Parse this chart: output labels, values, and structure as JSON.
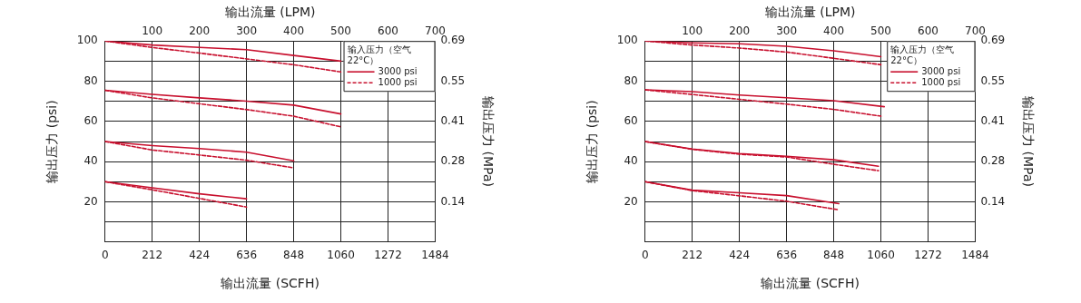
{
  "chart_data": [
    {
      "type": "line",
      "xlabel": "输出流量 (SCFH)",
      "x2label": "输出流量 (LPM)",
      "ylabel": "输出压力 (psi)",
      "y2label": "输出压力 (MPa)",
      "legend_title": "输入压力（空气 22°C）",
      "legend": "top right",
      "grid": true,
      "xlim": [
        0,
        1484
      ],
      "xticks": [
        0,
        212,
        424,
        636,
        848,
        1060,
        1272,
        1484
      ],
      "x2lim": [
        0,
        700
      ],
      "x2ticks": [
        100,
        200,
        300,
        400,
        500,
        600,
        700
      ],
      "ylim": [
        0,
        100
      ],
      "yticks": [
        {
          "value": 10,
          "label": null
        },
        20,
        {
          "value": 30,
          "label": null
        },
        40,
        {
          "value": 50,
          "label": null
        },
        60,
        {
          "value": 70,
          "label": null
        },
        80,
        {
          "value": 90,
          "label": null
        },
        100
      ],
      "y2lim": [
        0,
        0.6895
      ],
      "y2ticks": [
        {
          "value": 0.1379,
          "label": "0.14"
        },
        {
          "value": 0.2758,
          "label": "0.28"
        },
        {
          "value": 0.4137,
          "label": "0.41"
        },
        {
          "value": 0.5516,
          "label": "0.55"
        },
        {
          "value": 0.6895,
          "label": "0.69"
        }
      ],
      "series": [
        {
          "name": "3000 psi",
          "color": "#c8102e",
          "line_style": "solid",
          "x": [
            0,
            212,
            424,
            636,
            848,
            1060
          ],
          "values": [
            100,
            98,
            96.8,
            95.7,
            92.8,
            90
          ]
        },
        {
          "name": "1000 psi",
          "color": "#c8102e",
          "line_style": "dashed",
          "x": [
            0,
            212,
            424,
            636,
            848,
            1060
          ],
          "values": [
            100,
            96.8,
            94,
            91.1,
            88.2,
            84.6
          ]
        },
        {
          "color": "#c8102e",
          "line_style": "solid",
          "x": [
            0,
            212,
            424,
            636,
            848,
            1060
          ],
          "values": [
            75.5,
            73.5,
            71.7,
            70.1,
            68.1,
            63.7
          ]
        },
        {
          "color": "#c8102e",
          "line_style": "dashed",
          "x": [
            0,
            212,
            424,
            636,
            848,
            1060
          ],
          "values": [
            75.5,
            71.7,
            68.8,
            65.9,
            62.6,
            57.3
          ]
        },
        {
          "color": "#c8102e",
          "line_style": "solid",
          "x": [
            0,
            212,
            424,
            636,
            848
          ],
          "values": [
            50,
            48,
            46.5,
            44.7,
            40.4
          ]
        },
        {
          "color": "#c8102e",
          "line_style": "dashed",
          "x": [
            0,
            212,
            424,
            636,
            848
          ],
          "values": [
            50,
            45.8,
            43.3,
            40.7,
            36.9
          ]
        },
        {
          "color": "#c8102e",
          "line_style": "solid",
          "x": [
            0,
            212,
            424,
            636
          ],
          "values": [
            30,
            27,
            24,
            21.5
          ]
        },
        {
          "color": "#c8102e",
          "line_style": "dashed",
          "x": [
            0,
            212,
            424,
            636
          ],
          "values": [
            30,
            26,
            21.7,
            17.4
          ]
        }
      ]
    },
    {
      "type": "line",
      "xlabel": "输出流量 (SCFH)",
      "x2label": "输出流量 (LPM)",
      "ylabel": "输出压力 (psi)",
      "y2label": "输出压力 (MPa)",
      "legend_title": "输入压力（空气 22°C）",
      "legend": "top right",
      "grid": true,
      "xlim": [
        0,
        1484
      ],
      "xticks": [
        0,
        212,
        424,
        636,
        848,
        1060,
        1272,
        1484
      ],
      "x2lim": [
        0,
        700
      ],
      "x2ticks": [
        100,
        200,
        300,
        400,
        500,
        600,
        700
      ],
      "ylim": [
        0,
        100
      ],
      "yticks": [
        {
          "value": 10,
          "label": null
        },
        20,
        {
          "value": 30,
          "label": null
        },
        40,
        {
          "value": 50,
          "label": null
        },
        60,
        {
          "value": 70,
          "label": null
        },
        80,
        {
          "value": 90,
          "label": null
        },
        100
      ],
      "y2lim": [
        0,
        0.6895
      ],
      "y2ticks": [
        {
          "value": 0.1379,
          "label": "0.14"
        },
        {
          "value": 0.2758,
          "label": "0.28"
        },
        {
          "value": 0.4137,
          "label": "0.41"
        },
        {
          "value": 0.5516,
          "label": "0.55"
        },
        {
          "value": 0.6895,
          "label": "0.69"
        }
      ],
      "series": [
        {
          "name": "3000 psi",
          "color": "#c8102e",
          "line_style": "solid",
          "x": [
            0,
            212,
            424,
            636,
            848,
            916,
            1060
          ],
          "values": [
            100,
            99.1,
            98.6,
            97.4,
            95.1,
            94.2,
            92.2
          ]
        },
        {
          "name": "1000 psi",
          "color": "#c8102e",
          "line_style": "dashed",
          "x": [
            0,
            212,
            424,
            636,
            848,
            1060
          ],
          "values": [
            100,
            98,
            96.5,
            94.5,
            91.4,
            88.2
          ]
        },
        {
          "color": "#c8102e",
          "line_style": "solid",
          "x": [
            0,
            212,
            424,
            636,
            848,
            1075
          ],
          "values": [
            75.7,
            74.8,
            73.1,
            71.8,
            70.3,
            67.3
          ]
        },
        {
          "color": "#c8102e",
          "line_style": "dashed",
          "x": [
            0,
            212,
            424,
            636,
            848,
            1060
          ],
          "values": [
            75.7,
            73.4,
            71,
            68.6,
            66,
            62.6
          ]
        },
        {
          "color": "#c8102e",
          "line_style": "solid",
          "x": [
            0,
            212,
            424,
            636,
            848,
            1049
          ],
          "values": [
            50,
            46.3,
            44,
            42.7,
            40.9,
            37.7
          ]
        },
        {
          "color": "#c8102e",
          "line_style": "dashed",
          "x": [
            0,
            212,
            424,
            636,
            848,
            1049
          ],
          "values": [
            50,
            46.1,
            43.7,
            42.3,
            38.7,
            35.5
          ]
        },
        {
          "color": "#c8102e",
          "line_style": "solid",
          "x": [
            0,
            212,
            424,
            636,
            871
          ],
          "values": [
            30,
            25.8,
            24.5,
            23.1,
            19.1
          ]
        },
        {
          "color": "#c8102e",
          "line_style": "dashed",
          "x": [
            0,
            212,
            424,
            636,
            871
          ],
          "values": [
            30,
            25.6,
            23,
            20.3,
            16
          ]
        }
      ]
    }
  ]
}
